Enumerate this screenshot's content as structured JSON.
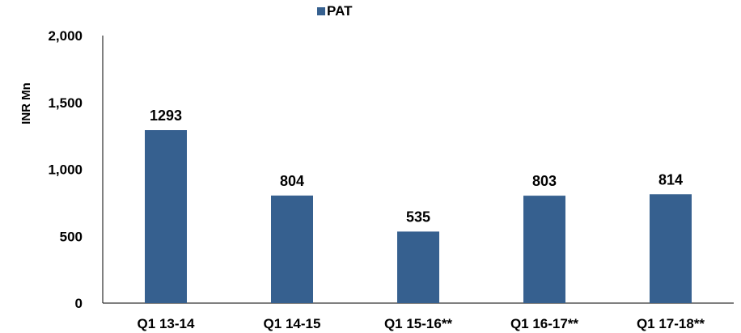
{
  "chart_data": {
    "type": "bar",
    "title": "",
    "xlabel": "",
    "ylabel": "INR Mn",
    "categories": [
      "Q1 13-14",
      "Q1 14-15",
      "Q1 15-16**",
      "Q1 16-17**",
      "Q1 17-18**"
    ],
    "series": [
      {
        "name": "PAT",
        "values": [
          1293,
          804,
          535,
          803,
          814
        ],
        "color": "#36608f"
      }
    ],
    "data_labels": [
      "1293",
      "804",
      "535",
      "803",
      "814"
    ],
    "yticks": [
      0,
      500,
      1000,
      1500,
      2000
    ],
    "ytick_labels": [
      "0",
      "500",
      "1,000",
      "1,500",
      "2,000"
    ],
    "ylim": [
      0,
      2000
    ],
    "grid": false,
    "legend_position": "top-center"
  }
}
